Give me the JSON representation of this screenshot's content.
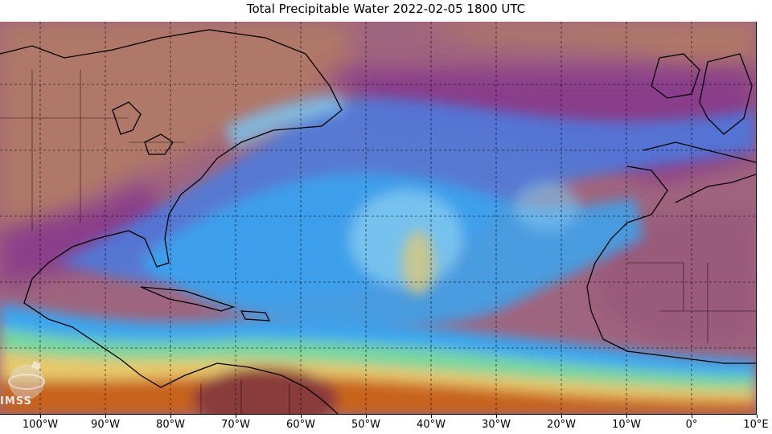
{
  "title": "Total Precipitable Water  2022-02-05 1800 UTC",
  "x_axis": {
    "ticks": [
      "100°W",
      "90°W",
      "80°W",
      "70°W",
      "60°W",
      "50°W",
      "40°W",
      "30°W",
      "20°W",
      "10°W",
      "0°",
      "10°E"
    ]
  },
  "logo": {
    "text": "IMSS"
  },
  "colors": {
    "very_dry": "#b07868",
    "dry": "#8a3c8a",
    "medium": "#5a4ad2",
    "moist": "#3aa6f0",
    "wet_green": "#78d6a0",
    "wet_yellow": "#e8c86a",
    "very_wet": "#c8641e",
    "grid": "#000000",
    "coast": "#000000"
  }
}
